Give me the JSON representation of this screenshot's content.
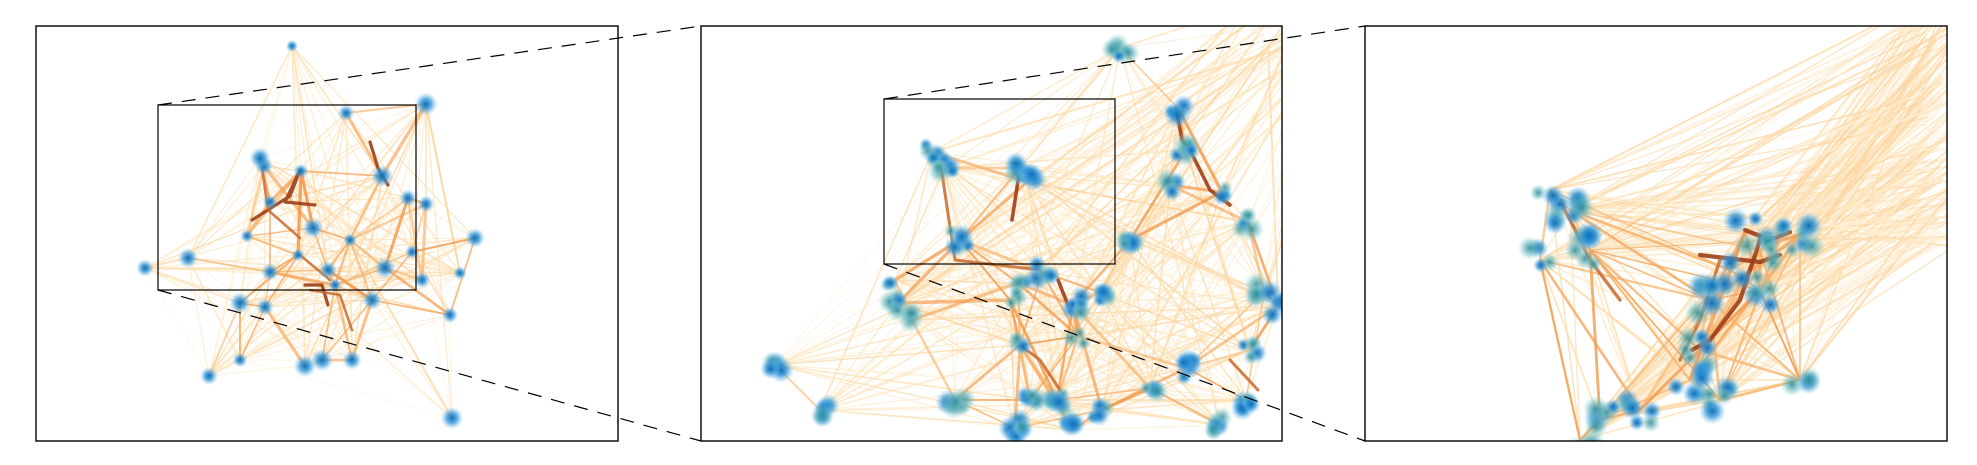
{
  "figure": {
    "panels": [
      {
        "id": "overview",
        "level": 0
      },
      {
        "id": "zoom-level-1",
        "level": 1
      },
      {
        "id": "zoom-level-2",
        "level": 2
      }
    ],
    "colors": {
      "node": "#1f7fc4",
      "node_glow": "#64b4e8",
      "edge_light": "#fde2b4",
      "edge_mid": "#f5a35a",
      "edge_dark": "#a0401a",
      "frame": "#000000"
    },
    "description_hidden": ""
  }
}
